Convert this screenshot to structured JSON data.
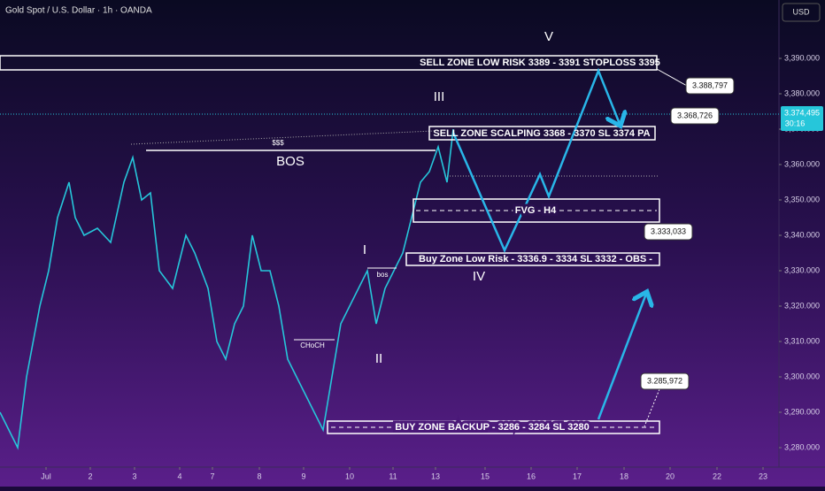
{
  "chart_data": {
    "type": "line",
    "title": "Gold Spot / U.S. Dollar · 1h · OANDA",
    "currency": "USD",
    "current_price": "3.374,495",
    "countdown": "30:16",
    "series": [
      {
        "color": "#26c6da",
        "x": [
          -0.04,
          0.16,
          0.36,
          0.56,
          0.86,
          1.06,
          1.26,
          1.52,
          1.66,
          1.86,
          2.16,
          2.46,
          2.76,
          2.96,
          3.16,
          3.36,
          3.56,
          3.86,
          4.16,
          4.36,
          4.66,
          4.86,
          5.06,
          5.26,
          5.46,
          5.66,
          5.86,
          6.06,
          6.26,
          6.46,
          6.66,
          6.86,
          7.06,
          7.26,
          7.46,
          7.66,
          7.86,
          8.06,
          8.26,
          8.46,
          8.66,
          8.86,
          9.06,
          9.26,
          9.46,
          9.66,
          9.86,
          10.06,
          10.2
        ],
        "values": [
          3290,
          3285,
          3280,
          3300,
          3320,
          3330,
          3345,
          3355,
          3345,
          3340,
          3342,
          3338,
          3355,
          3362,
          3350,
          3352,
          3330,
          3325,
          3340,
          3335,
          3325,
          3310,
          3305,
          3315,
          3320,
          3340,
          3330,
          3330,
          3320,
          3305,
          3300,
          3295,
          3290,
          3285,
          3300,
          3315,
          3320,
          3325,
          3330,
          3315,
          3325,
          3330,
          3335,
          3345,
          3355,
          3358,
          3365,
          3355,
          3370
        ]
      }
    ],
    "xlim": [
      -0.04,
      17.56
    ],
    "xticks": [
      {
        "value": 1,
        "label": "Jul"
      },
      2,
      3,
      {
        "value": 4.02,
        "label": "4"
      },
      {
        "value": 4.76,
        "label": "7"
      },
      {
        "value": 5.82,
        "label": "8"
      },
      {
        "value": 6.82,
        "label": "9"
      },
      {
        "value": 7.86,
        "label": "10"
      },
      {
        "value": 8.84,
        "label": "11"
      },
      {
        "value": 9.8,
        "label": "13"
      },
      {
        "value": 10.92,
        "label": "15"
      },
      {
        "value": 11.96,
        "label": "16"
      },
      {
        "value": 13,
        "label": "17"
      },
      {
        "value": 14.06,
        "label": "18"
      },
      {
        "value": 15.1,
        "label": "20"
      },
      {
        "value": 16.16,
        "label": "22"
      },
      {
        "value": 17.2,
        "label": "23"
      }
    ],
    "ylim": [
      3276,
      3406.5
    ],
    "yticks": [
      {
        "value": 3280,
        "label": "3,280.000"
      },
      {
        "value": 3290,
        "label": "3,290.000"
      },
      {
        "value": 3300,
        "label": "3,300.000"
      },
      {
        "value": 3310,
        "label": "3,310.000"
      },
      {
        "value": 3320,
        "label": "3,320.000"
      },
      {
        "value": 3330,
        "label": "3,330.000"
      },
      {
        "value": 3340,
        "label": "3,340.000"
      },
      {
        "value": 3350,
        "label": "3,350.000"
      },
      {
        "value": 3360,
        "label": "3,360.000"
      },
      {
        "value": 3370,
        "label": "3,370.000"
      },
      {
        "value": 3380,
        "label": "3,380.000"
      },
      {
        "value": 3390,
        "label": "3,390.000"
      }
    ],
    "annotations": {
      "wave_v": "V",
      "wave_iii": "III",
      "wave_i": "I",
      "wave_ii": "II",
      "wave_iv": "IV",
      "bos_major": "BOS",
      "liquidity": "$$$",
      "choch": "CHoCH",
      "bos_minor": "bos",
      "sell_low_risk": "SELL ZONE LOW RISK 3389 - 3391 STOPLOSS 3395",
      "sell_scalping": "SELL ZONE SCALPING 3368 - 3370 SL 3374  PA",
      "fvg": "FVG - H4",
      "buy_low_risk": "Buy Zone Low Risk - 3336.9 - 3334 SL 3332 - OBS -",
      "buy_backup": "BUY ZONE BACKUP - 3286 - 3284 SL 3280",
      "label_1": "3.388,797",
      "label_2": "3.368,726",
      "label_3": "3.333,033",
      "label_4": "3.285,972"
    }
  }
}
